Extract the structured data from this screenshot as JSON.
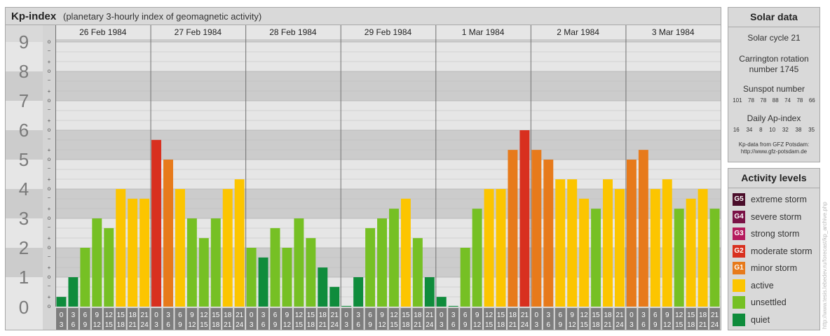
{
  "chart_title": "Kp-index",
  "chart_subtitle": "(planetary 3-hourly index of geomagnetic activity)",
  "chart_data": {
    "type": "bar",
    "title": "Kp-index",
    "subtitle": "(planetary 3-hourly index of geomagnetic activity)",
    "ylim": [
      0,
      9
    ],
    "y_major_ticks": [
      "0",
      "1",
      "2",
      "3",
      "4",
      "5",
      "6",
      "7",
      "8",
      "9"
    ],
    "y_minor_ticks": [
      "−",
      "o",
      "+"
    ],
    "days": [
      "26 Feb 1984",
      "27 Feb 1984",
      "28 Feb 1984",
      "29 Feb 1984",
      "1 Mar 1984",
      "2 Mar 1984",
      "3 Mar 1984"
    ],
    "interval_start_labels": [
      "0",
      "3",
      "6",
      "9",
      "12",
      "15",
      "18",
      "21"
    ],
    "interval_end_labels": [
      "3",
      "6",
      "9",
      "12",
      "15",
      "18",
      "21",
      "24"
    ],
    "values": [
      [
        0.33,
        1.0,
        2.0,
        3.0,
        2.67,
        4.0,
        3.67,
        3.67
      ],
      [
        5.67,
        5.0,
        4.0,
        3.0,
        2.33,
        3.0,
        4.0,
        4.33
      ],
      [
        2.0,
        1.67,
        2.67,
        2.0,
        3.0,
        2.33,
        1.33,
        0.67
      ],
      [
        0.0,
        1.0,
        2.67,
        3.0,
        3.33,
        3.67,
        2.33,
        1.0
      ],
      [
        0.33,
        0.0,
        2.0,
        3.33,
        4.0,
        4.0,
        5.33,
        6.0
      ],
      [
        5.33,
        5.0,
        4.33,
        4.33,
        3.67,
        3.33,
        4.33,
        4.0
      ],
      [
        5.0,
        5.33,
        4.0,
        4.33,
        3.33,
        3.67,
        4.0,
        3.33
      ]
    ],
    "colors": {
      "quiet": "#0f8c3c",
      "unsettled": "#76c024",
      "active": "#fcc500",
      "minor": "#e77a1b",
      "moderate": "#d8301f",
      "strong": "#b51a5d",
      "severe": "#7a1246",
      "extreme": "#4a0d2a"
    }
  },
  "solar": {
    "header": "Solar data",
    "cycle": "Solar cycle 21",
    "carrington_1": "Carrington rotation",
    "carrington_2": "number 1745",
    "sunspot_title": "Sunspot number",
    "sunspot_values": [
      "101",
      "78",
      "78",
      "88",
      "74",
      "78",
      "66"
    ],
    "ap_title": "Daily Ap-index",
    "ap_values": [
      "16",
      "34",
      "8",
      "10",
      "32",
      "38",
      "35"
    ],
    "credit_1": "Kp-data from GFZ Potsdam:",
    "credit_2": "http://www.gfz-potsdam.de"
  },
  "activity": {
    "header": "Activity levels",
    "levels": [
      {
        "code": "G5",
        "label": "extreme storm",
        "color": "#4a0d2a"
      },
      {
        "code": "G4",
        "label": "severe storm",
        "color": "#7a1246"
      },
      {
        "code": "G3",
        "label": "strong storm",
        "color": "#b51a5d"
      },
      {
        "code": "G2",
        "label": "moderate storm",
        "color": "#d8301f"
      },
      {
        "code": "G1",
        "label": "minor storm",
        "color": "#e77a1b"
      },
      {
        "code": "",
        "label": "active",
        "color": "#fcc500"
      },
      {
        "code": "",
        "label": "unsettled",
        "color": "#76c024"
      },
      {
        "code": "",
        "label": "quiet",
        "color": "#0f8c3c"
      }
    ]
  },
  "watermark": "http://www.tesis.lebedev.ru/forecast/kp_archive.php"
}
